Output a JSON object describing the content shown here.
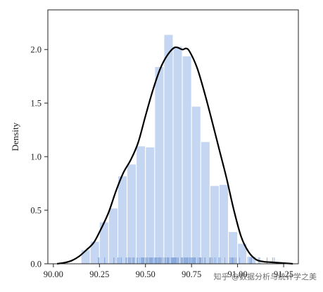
{
  "chart_data": {
    "type": "histogram",
    "ylabel": "Density",
    "xlabel": "",
    "xlim": [
      89.97,
      91.33
    ],
    "ylim": [
      0,
      2.37
    ],
    "xticks": [
      90.0,
      90.25,
      90.5,
      90.75,
      91.0,
      91.25
    ],
    "xtick_labels": [
      "90.00",
      "90.25",
      "90.50",
      "90.75",
      "91.00",
      "91.25"
    ],
    "yticks": [
      0.0,
      0.5,
      1.0,
      1.5,
      2.0
    ],
    "ytick_labels": [
      "0.0",
      "0.5",
      "1.0",
      "1.5",
      "2.0"
    ],
    "histogram": {
      "bin_edges": [
        90.15,
        90.2,
        90.25,
        90.3,
        90.35,
        90.4,
        90.45,
        90.5,
        90.55,
        90.6,
        90.65,
        90.7,
        90.75,
        90.8,
        90.85,
        90.9,
        90.95,
        91.0,
        91.05,
        91.1
      ],
      "density": [
        0.13,
        0.21,
        0.39,
        0.52,
        0.82,
        0.93,
        1.1,
        1.09,
        1.84,
        2.14,
        2.03,
        1.94,
        1.47,
        1.14,
        0.73,
        0.74,
        0.3,
        0.19,
        0.07
      ],
      "color": "#c5d6f2"
    },
    "kde": {
      "x": [
        90.02,
        90.06,
        90.1,
        90.14,
        90.18,
        90.22,
        90.26,
        90.3,
        90.34,
        90.38,
        90.42,
        90.46,
        90.5,
        90.54,
        90.58,
        90.62,
        90.66,
        90.7,
        90.72,
        90.74,
        90.78,
        90.82,
        90.86,
        90.9,
        90.94,
        90.98,
        91.02,
        91.06,
        91.1,
        91.14,
        91.18,
        91.22,
        91.26,
        91.3
      ],
      "y": [
        0.0,
        0.01,
        0.03,
        0.07,
        0.13,
        0.2,
        0.33,
        0.48,
        0.68,
        0.85,
        0.97,
        1.13,
        1.38,
        1.62,
        1.82,
        1.95,
        2.02,
        2.0,
        2.01,
        1.98,
        1.83,
        1.6,
        1.34,
        1.07,
        0.8,
        0.5,
        0.25,
        0.11,
        0.04,
        0.02,
        0.015,
        0.01,
        0.005,
        0.0
      ],
      "color": "#000000"
    },
    "rug": {
      "range": [
        90.16,
        91.12
      ],
      "count": 190,
      "outliers": [
        91.16,
        91.19,
        91.2
      ],
      "color": "#8aaadc"
    }
  },
  "watermark": {
    "text": "知乎 @数据分析与统计学之美"
  }
}
